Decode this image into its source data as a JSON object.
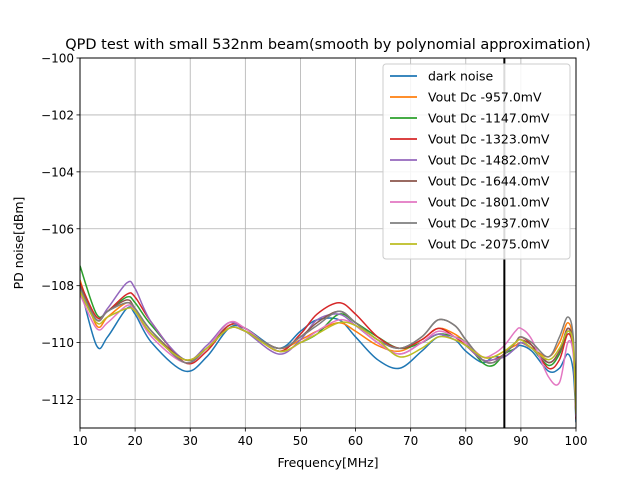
{
  "chart_data": {
    "type": "line",
    "title": "QPD test with small 532nm beam(smooth by polynomial approximation)",
    "xlabel": "Frequency[MHz]",
    "ylabel": "PD noise[dBm]",
    "xlim": [
      10,
      100
    ],
    "ylim": [
      -113,
      -100
    ],
    "xticks": [
      10,
      20,
      30,
      40,
      50,
      60,
      70,
      80,
      90,
      100
    ],
    "yticks": [
      -112,
      -110,
      -108,
      -106,
      -104,
      -102,
      -100
    ],
    "grid": true,
    "legend_position": "top-right",
    "vline_x": 87,
    "x": [
      10,
      13,
      15,
      18.5,
      20,
      23,
      29,
      33,
      37,
      40,
      46,
      50,
      53,
      57,
      60,
      64,
      68,
      72,
      75,
      78,
      80,
      83,
      85,
      87,
      89,
      90,
      92,
      95,
      97,
      98.5,
      99.5,
      100
    ],
    "series": [
      {
        "name": "dark noise",
        "color": "#1f77b4",
        "values": [
          -108.0,
          -110.1,
          -109.8,
          -108.8,
          -109.0,
          -110.0,
          -111.0,
          -110.5,
          -109.5,
          -109.5,
          -110.2,
          -109.6,
          -109.2,
          -109.2,
          -109.8,
          -110.6,
          -110.9,
          -110.3,
          -109.8,
          -109.9,
          -110.3,
          -110.7,
          -110.5,
          -110.5,
          -110.2,
          -110.1,
          -110.3,
          -111.0,
          -110.9,
          -110.4,
          -111.0,
          -112.8
        ]
      },
      {
        "name": "Vout Dc -957.0mV",
        "color": "#ff7f0e",
        "values": [
          -107.8,
          -109.4,
          -109.1,
          -108.6,
          -108.9,
          -109.7,
          -110.6,
          -110.2,
          -109.5,
          -109.6,
          -110.2,
          -109.9,
          -109.6,
          -109.3,
          -109.6,
          -110.1,
          -110.3,
          -109.9,
          -109.5,
          -109.7,
          -110.0,
          -110.5,
          -110.5,
          -110.3,
          -110.1,
          -110.0,
          -110.2,
          -110.5,
          -110.0,
          -109.3,
          -110.0,
          -112.5
        ]
      },
      {
        "name": "Vout Dc -1147.0mV",
        "color": "#2ca02c",
        "values": [
          -107.3,
          -109.0,
          -108.9,
          -108.4,
          -108.6,
          -109.4,
          -110.6,
          -110.2,
          -109.4,
          -109.5,
          -110.3,
          -110.0,
          -109.7,
          -109.0,
          -109.3,
          -109.8,
          -110.2,
          -110.0,
          -109.7,
          -109.8,
          -110.0,
          -110.7,
          -110.8,
          -110.4,
          -110.2,
          -110.0,
          -110.2,
          -110.8,
          -110.4,
          -109.6,
          -110.2,
          -112.6
        ]
      },
      {
        "name": "Vout Dc -1323.0mV",
        "color": "#d62728",
        "values": [
          -107.9,
          -109.1,
          -108.9,
          -108.3,
          -108.4,
          -109.3,
          -110.7,
          -110.3,
          -109.4,
          -109.5,
          -110.3,
          -109.7,
          -109.0,
          -108.6,
          -109.0,
          -109.8,
          -110.2,
          -109.9,
          -109.5,
          -109.8,
          -110.1,
          -110.6,
          -110.6,
          -110.4,
          -110.0,
          -109.8,
          -110.1,
          -110.9,
          -110.6,
          -109.7,
          -110.3,
          -112.7
        ]
      },
      {
        "name": "Vout Dc -1482.0mV",
        "color": "#9467bd",
        "values": [
          -108.1,
          -109.2,
          -108.8,
          -107.9,
          -108.1,
          -109.3,
          -110.6,
          -110.1,
          -109.3,
          -109.6,
          -110.4,
          -109.9,
          -109.2,
          -109.0,
          -109.4,
          -110.0,
          -110.4,
          -110.0,
          -109.7,
          -109.9,
          -110.1,
          -110.6,
          -110.6,
          -110.5,
          -110.2,
          -110.0,
          -110.2,
          -110.7,
          -110.3,
          -109.5,
          -110.2,
          -112.6
        ]
      },
      {
        "name": "Vout Dc -1644.0mV",
        "color": "#8c564b",
        "values": [
          -108.0,
          -109.2,
          -108.9,
          -108.5,
          -108.8,
          -109.6,
          -110.6,
          -110.2,
          -109.5,
          -109.6,
          -110.2,
          -109.8,
          -109.3,
          -108.9,
          -109.3,
          -109.9,
          -110.2,
          -109.8,
          -109.2,
          -109.4,
          -109.9,
          -110.6,
          -110.7,
          -110.4,
          -110.0,
          -109.9,
          -110.1,
          -110.7,
          -110.3,
          -109.5,
          -110.1,
          -112.6
        ]
      },
      {
        "name": "Vout Dc -1801.0mV",
        "color": "#e377c2",
        "values": [
          -108.3,
          -109.5,
          -109.3,
          -108.7,
          -108.9,
          -109.8,
          -110.7,
          -110.2,
          -109.3,
          -109.5,
          -110.3,
          -110.0,
          -109.6,
          -109.2,
          -109.4,
          -110.0,
          -110.4,
          -110.0,
          -109.6,
          -109.8,
          -110.0,
          -110.5,
          -110.4,
          -110.1,
          -109.6,
          -109.5,
          -109.9,
          -111.2,
          -111.4,
          -110.0,
          -110.4,
          -112.6
        ]
      },
      {
        "name": "Vout Dc -1937.0mV",
        "color": "#7f7f7f",
        "values": [
          -108.1,
          -109.2,
          -108.9,
          -108.6,
          -108.8,
          -109.6,
          -110.7,
          -110.2,
          -109.5,
          -109.6,
          -110.2,
          -109.8,
          -109.4,
          -108.9,
          -109.3,
          -109.9,
          -110.2,
          -109.8,
          -109.2,
          -109.4,
          -109.9,
          -110.6,
          -110.7,
          -110.4,
          -110.0,
          -109.8,
          -110.0,
          -110.5,
          -109.8,
          -109.1,
          -109.8,
          -112.5
        ]
      },
      {
        "name": "Vout Dc -2075.0mV",
        "color": "#bcbd22",
        "values": [
          -108.2,
          -109.3,
          -109.1,
          -108.8,
          -108.9,
          -109.7,
          -110.6,
          -110.2,
          -109.5,
          -109.6,
          -110.3,
          -110.0,
          -109.7,
          -109.3,
          -109.4,
          -109.9,
          -110.5,
          -110.2,
          -109.8,
          -109.9,
          -110.1,
          -110.5,
          -110.5,
          -110.3,
          -110.0,
          -109.9,
          -110.2,
          -110.6,
          -110.2,
          -109.6,
          -110.1,
          -112.5
        ]
      }
    ]
  }
}
